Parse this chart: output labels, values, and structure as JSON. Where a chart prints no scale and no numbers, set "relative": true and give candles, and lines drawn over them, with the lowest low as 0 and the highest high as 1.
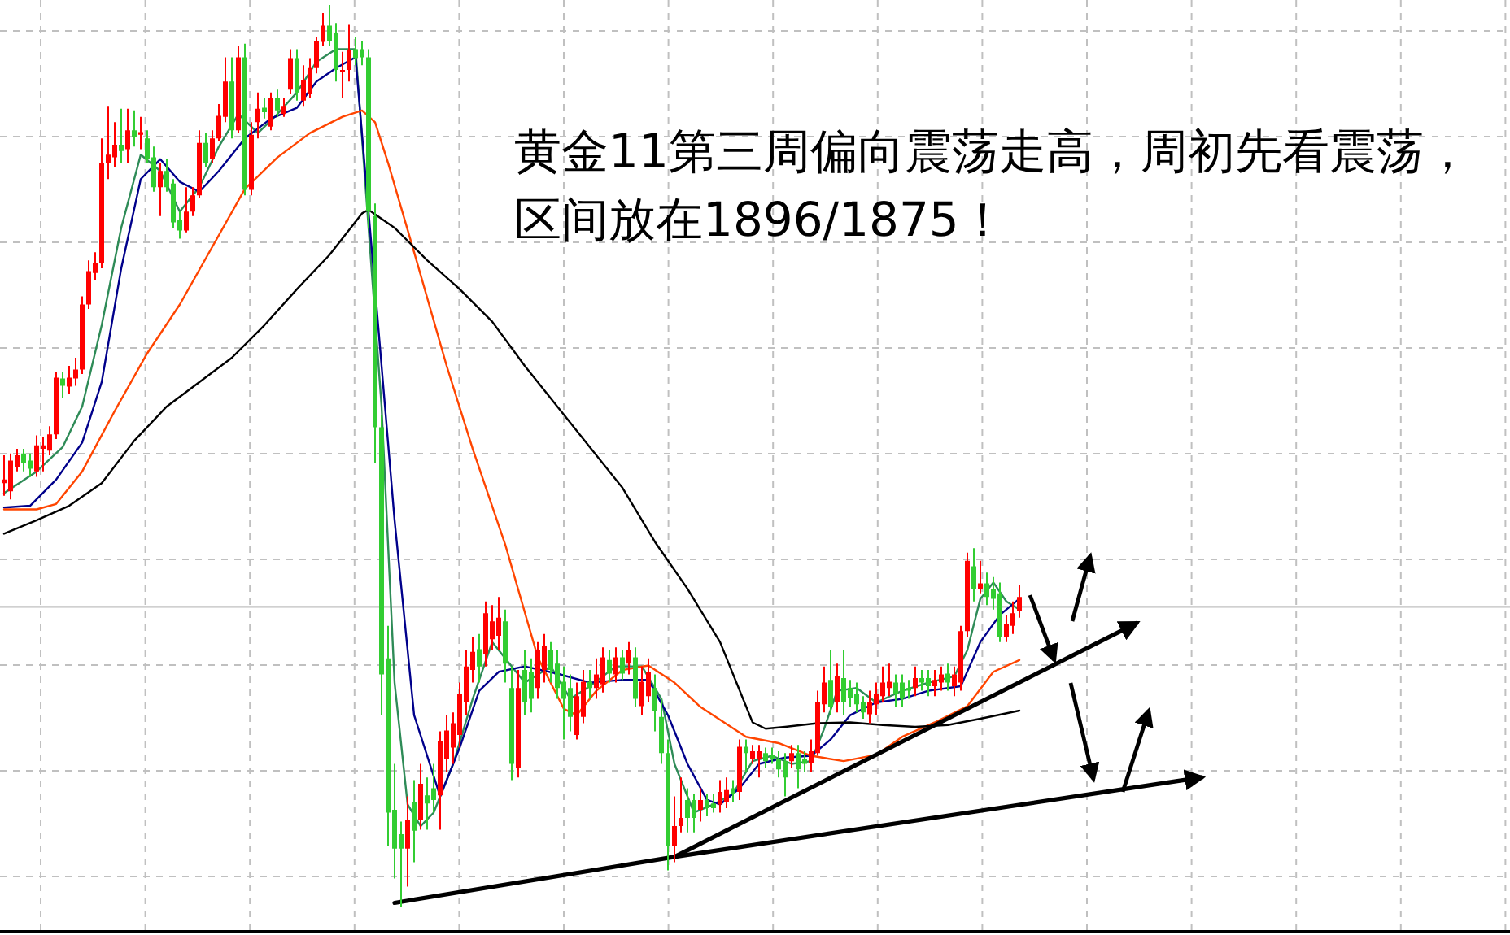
{
  "chart_data": {
    "type": "candlestick",
    "relative": true,
    "grid": true,
    "annotations": [
      "黄金11第三周偏向震荡走高，周初先看震荡，区间放在1896/1875！"
    ],
    "colors": [
      "#ff0000",
      "#ff0000",
      "#ff0000",
      "#32cd32",
      "#32cd32",
      "#ff0000",
      "#ff0000",
      "#ff0000",
      "#ff0000",
      "#32cd32",
      "#ff0000",
      "#ff0000",
      "#ff0000",
      "#ff0000",
      "#ff0000",
      "#ff0000",
      "#ff0000",
      "#ff0000",
      "#32cd32",
      "#ff0000",
      "#32cd32",
      "#ff0000",
      "#32cd32",
      "#32cd32",
      "#ff0000",
      "#32cd32",
      "#32cd32",
      "#32cd32",
      "#ff0000",
      "#ff0000",
      "#ff0000",
      "#32cd32",
      "#ff0000",
      "#ff0000",
      "#ff0000",
      "#32cd32",
      "#ff0000",
      "#32cd32",
      "#ff0000",
      "#ff0000",
      "#32cd32",
      "#ff0000",
      "#32cd32",
      "#ff0000",
      "#ff0000",
      "#32cd32",
      "#ff0000",
      "#ff0000",
      "#ff0000",
      "#ff0000",
      "#32cd32",
      "#32cd32",
      "#ff0000",
      "#ff0000",
      "#32cd32",
      "#32cd32",
      "#32cd32",
      "#32cd32",
      "#32cd32",
      "#32cd32",
      "#32cd32",
      "#32cd32",
      "#ff0000",
      "#32cd32",
      "#ff0000",
      "#32cd32",
      "#32cd32",
      "#ff0000",
      "#ff0000",
      "#ff0000",
      "#ff0000",
      "#ff0000",
      "#ff0000",
      "#32cd32",
      "#ff0000",
      "#ff0000",
      "#ff0000",
      "#32cd32",
      "#32cd32",
      "#ff0000",
      "#32cd32",
      "#32cd32",
      "#ff0000",
      "#ff0000",
      "#32cd32",
      "#32cd32",
      "#32cd32",
      "#32cd32",
      "#ff0000",
      "#ff0000",
      "#32cd32",
      "#ff0000",
      "#ff0000",
      "#32cd32",
      "#ff0000",
      "#32cd32",
      "#ff0000",
      "#32cd32",
      "#ff0000",
      "#ff0000",
      "#32cd32",
      "#32cd32",
      "#32cd32",
      "#ff0000",
      "#ff0000",
      "#32cd32",
      "#32cd32",
      "#ff0000",
      "#32cd32",
      "#32cd32",
      "#ff0000",
      "#ff0000",
      "#32cd32",
      "#ff0000",
      "#32cd32",
      "#ff0000",
      "#ff0000",
      "#32cd32",
      "#32cd32",
      "#32cd32",
      "#32cd32",
      "#ff0000",
      "#32cd32",
      "#32cd32",
      "#ff0000",
      "#ff0000",
      "#ff0000",
      "#32cd32",
      "#ff0000",
      "#32cd32",
      "#32cd32",
      "#32cd32",
      "#32cd32",
      "#ff0000",
      "#ff0000",
      "#ff0000",
      "#ff0000",
      "#32cd32",
      "#32cd32",
      "#32cd32",
      "#ff0000",
      "#32cd32",
      "#32cd32",
      "#ff0000",
      "#ff0000",
      "#32cd32",
      "#ff0000",
      "#ff0000",
      "#ff0000",
      "#32cd32",
      "#ff0000",
      "#32cd32",
      "#32cd32",
      "#32cd32",
      "#ff0000",
      "#ff0000",
      "#ff0000",
      null,
      null,
      null,
      null,
      null,
      null,
      null,
      null,
      null,
      null,
      null,
      null,
      null,
      null,
      null,
      null,
      null,
      null,
      null,
      null,
      null,
      null,
      null,
      null,
      null,
      null,
      null,
      null
    ],
    "ref_lines": [
      {
        "axis": "y",
        "value": 0.333,
        "color": "#c0c0c0"
      }
    ],
    "categories": [
      null,
      null,
      null,
      null,
      null,
      null,
      null,
      null,
      null,
      null,
      null,
      null,
      null,
      null,
      null,
      null,
      null,
      null,
      null,
      null,
      null,
      null,
      null,
      null,
      null,
      null,
      null,
      null,
      null,
      null,
      null,
      null,
      null,
      null,
      null,
      null,
      null,
      null,
      null,
      null,
      null,
      null,
      null,
      null,
      null,
      null,
      null,
      null,
      null,
      null,
      null,
      null,
      null,
      null,
      null,
      null,
      null,
      null,
      null,
      null,
      null,
      null,
      null,
      null,
      null,
      null,
      null,
      null,
      null,
      null,
      null,
      null,
      null,
      null,
      null,
      null,
      null,
      null,
      null,
      null,
      null,
      null,
      null,
      null,
      null,
      null,
      null,
      null,
      null,
      null,
      null,
      null,
      null,
      null,
      null,
      null,
      null,
      null,
      null,
      null,
      null,
      null,
      null,
      null,
      null,
      null,
      null,
      null,
      null,
      null,
      null,
      null,
      null,
      null,
      null,
      null,
      null,
      null,
      null,
      null,
      null,
      null,
      null,
      null,
      null,
      null,
      null,
      null,
      null,
      null,
      null,
      null,
      null,
      null,
      null,
      null,
      null,
      null,
      null,
      null,
      null,
      null,
      null,
      null,
      null,
      null,
      null,
      null,
      null,
      null,
      null,
      null,
      null,
      null,
      null,
      null,
      null,
      null,
      null,
      null,
      null,
      null,
      null,
      null,
      null,
      null,
      null,
      null,
      null,
      null,
      null,
      null,
      null,
      null,
      null,
      null,
      null,
      null,
      null,
      null,
      null,
      null,
      null,
      null,
      null
    ],
    "ohlc": [
      [
        0.47,
        0.501,
        0.456,
        0.474
      ],
      [
        0.461,
        0.503,
        0.452,
        0.495
      ],
      [
        0.488,
        0.508,
        0.483,
        0.501
      ],
      [
        0.503,
        0.508,
        0.483,
        0.492
      ],
      [
        0.495,
        0.503,
        0.477,
        0.486
      ],
      [
        0.483,
        0.523,
        0.477,
        0.512
      ],
      [
        0.508,
        0.521,
        0.483,
        0.512
      ],
      [
        0.506,
        0.533,
        0.501,
        0.524
      ],
      [
        0.524,
        0.593,
        0.519,
        0.587
      ],
      [
        0.586,
        0.593,
        0.564,
        0.578
      ],
      [
        0.577,
        0.6,
        0.569,
        0.587
      ],
      [
        0.586,
        0.609,
        0.578,
        0.596
      ],
      [
        0.596,
        0.677,
        0.591,
        0.668
      ],
      [
        0.668,
        0.717,
        0.663,
        0.705
      ],
      [
        0.703,
        0.726,
        0.695,
        0.714
      ],
      [
        0.714,
        0.852,
        0.708,
        0.825
      ],
      [
        0.825,
        0.888,
        0.807,
        0.834
      ],
      [
        0.831,
        0.87,
        0.82,
        0.845
      ],
      [
        0.845,
        0.885,
        0.825,
        0.838
      ],
      [
        0.84,
        0.885,
        0.825,
        0.861
      ],
      [
        0.861,
        0.883,
        0.843,
        0.854
      ],
      [
        0.856,
        0.876,
        0.84,
        0.859
      ],
      [
        0.852,
        0.861,
        0.825,
        0.829
      ],
      [
        0.831,
        0.843,
        0.793,
        0.798
      ],
      [
        0.798,
        0.825,
        0.766,
        0.816
      ],
      [
        0.816,
        0.829,
        0.793,
        0.798
      ],
      [
        0.802,
        0.807,
        0.753,
        0.759
      ],
      [
        0.762,
        0.771,
        0.741,
        0.75
      ],
      [
        0.75,
        0.798,
        0.748,
        0.771
      ],
      [
        0.771,
        0.798,
        0.766,
        0.789
      ],
      [
        0.789,
        0.861,
        0.786,
        0.847
      ],
      [
        0.847,
        0.858,
        0.82,
        0.825
      ],
      [
        0.829,
        0.861,
        0.825,
        0.852
      ],
      [
        0.852,
        0.89,
        0.849,
        0.877
      ],
      [
        0.876,
        0.942,
        0.87,
        0.915
      ],
      [
        0.915,
        0.942,
        0.852,
        0.861
      ],
      [
        0.861,
        0.955,
        0.858,
        0.942
      ],
      [
        0.942,
        0.957,
        0.789,
        0.795
      ],
      [
        0.795,
        0.87,
        0.789,
        0.856
      ],
      [
        0.87,
        0.903,
        0.852,
        0.885
      ],
      [
        0.886,
        0.897,
        0.874,
        0.881
      ],
      [
        0.865,
        0.903,
        0.861,
        0.897
      ],
      [
        0.897,
        0.906,
        0.876,
        0.883
      ],
      [
        0.879,
        0.897,
        0.876,
        0.888
      ],
      [
        0.906,
        0.951,
        0.901,
        0.941
      ],
      [
        0.941,
        0.951,
        0.894,
        0.903
      ],
      [
        0.894,
        0.933,
        0.888,
        0.917
      ],
      [
        0.901,
        0.941,
        0.897,
        0.93
      ],
      [
        0.93,
        0.964,
        0.924,
        0.96
      ],
      [
        0.959,
        0.991,
        0.955,
        0.977
      ],
      [
        0.977,
        1.0,
        0.955,
        0.96
      ],
      [
        0.969,
        0.98,
        0.915,
        0.928
      ],
      [
        0.926,
        0.948,
        0.897,
        0.928
      ],
      [
        0.928,
        0.978,
        0.915,
        0.95
      ],
      [
        0.951,
        0.964,
        0.933,
        0.941
      ],
      [
        0.951,
        0.96,
        0.933,
        0.942
      ],
      [
        0.942,
        0.951,
        0.753,
        0.771
      ],
      [
        0.766,
        0.78,
        0.492,
        0.532
      ],
      [
        0.532,
        0.546,
        0.213,
        0.258
      ],
      [
        0.276,
        0.312,
        0.068,
        0.105
      ],
      [
        0.108,
        0.159,
        0.032,
        0.065
      ],
      [
        0.081,
        0.095,
        0.0,
        0.065
      ],
      [
        0.065,
        0.123,
        0.023,
        0.097
      ],
      [
        0.117,
        0.141,
        0.05,
        0.085
      ],
      [
        0.097,
        0.159,
        0.086,
        0.137
      ],
      [
        0.124,
        0.144,
        0.086,
        0.115
      ],
      [
        0.132,
        0.159,
        0.105,
        0.119
      ],
      [
        0.124,
        0.195,
        0.086,
        0.184
      ],
      [
        0.164,
        0.213,
        0.15,
        0.196
      ],
      [
        0.177,
        0.216,
        0.159,
        0.204
      ],
      [
        0.191,
        0.249,
        0.177,
        0.236
      ],
      [
        0.227,
        0.285,
        0.213,
        0.267
      ],
      [
        0.263,
        0.299,
        0.249,
        0.283
      ],
      [
        0.286,
        0.303,
        0.249,
        0.267
      ],
      [
        0.281,
        0.339,
        0.267,
        0.326
      ],
      [
        0.297,
        0.335,
        0.285,
        0.317
      ],
      [
        0.301,
        0.344,
        0.285,
        0.321
      ],
      [
        0.317,
        0.33,
        0.249,
        0.27
      ],
      [
        0.243,
        0.267,
        0.141,
        0.159
      ],
      [
        0.155,
        0.263,
        0.144,
        0.243
      ],
      [
        0.263,
        0.285,
        0.213,
        0.227
      ],
      [
        0.261,
        0.276,
        0.216,
        0.231
      ],
      [
        0.243,
        0.294,
        0.231,
        0.285
      ],
      [
        0.263,
        0.303,
        0.249,
        0.29
      ],
      [
        0.285,
        0.294,
        0.249,
        0.263
      ],
      [
        0.27,
        0.285,
        0.231,
        0.243
      ],
      [
        0.25,
        0.267,
        0.186,
        0.231
      ],
      [
        0.243,
        0.258,
        0.195,
        0.211
      ],
      [
        0.191,
        0.249,
        0.186,
        0.234
      ],
      [
        0.211,
        0.263,
        0.204,
        0.25
      ],
      [
        0.25,
        0.263,
        0.231,
        0.243
      ],
      [
        0.243,
        0.276,
        0.231,
        0.258
      ],
      [
        0.247,
        0.288,
        0.238,
        0.277
      ],
      [
        0.274,
        0.285,
        0.249,
        0.259
      ],
      [
        0.258,
        0.288,
        0.249,
        0.277
      ],
      [
        0.277,
        0.285,
        0.252,
        0.259
      ],
      [
        0.27,
        0.294,
        0.258,
        0.285
      ],
      [
        0.277,
        0.288,
        0.222,
        0.231
      ],
      [
        0.223,
        0.267,
        0.213,
        0.25
      ],
      [
        0.234,
        0.276,
        0.227,
        0.261
      ],
      [
        0.243,
        0.258,
        0.195,
        0.218
      ],
      [
        0.211,
        0.231,
        0.159,
        0.171
      ],
      [
        0.171,
        0.186,
        0.041,
        0.068
      ],
      [
        0.068,
        0.123,
        0.05,
        0.09
      ],
      [
        0.09,
        0.144,
        0.083,
        0.099
      ],
      [
        0.119,
        0.132,
        0.083,
        0.099
      ],
      [
        0.119,
        0.126,
        0.083,
        0.099
      ],
      [
        0.108,
        0.132,
        0.095,
        0.119
      ],
      [
        0.119,
        0.126,
        0.101,
        0.11
      ],
      [
        0.115,
        0.126,
        0.105,
        0.11
      ],
      [
        0.114,
        0.141,
        0.105,
        0.128
      ],
      [
        0.117,
        0.144,
        0.11,
        0.13
      ],
      [
        0.132,
        0.141,
        0.117,
        0.126
      ],
      [
        0.128,
        0.186,
        0.119,
        0.178
      ],
      [
        0.178,
        0.186,
        0.15,
        0.171
      ],
      [
        0.164,
        0.18,
        0.159,
        0.173
      ],
      [
        0.164,
        0.18,
        0.144,
        0.173
      ],
      [
        0.171,
        0.177,
        0.155,
        0.162
      ],
      [
        0.169,
        0.177,
        0.159,
        0.164
      ],
      [
        0.164,
        0.173,
        0.144,
        0.153
      ],
      [
        0.162,
        0.171,
        0.123,
        0.144
      ],
      [
        0.162,
        0.18,
        0.155,
        0.171
      ],
      [
        0.171,
        0.18,
        0.132,
        0.153
      ],
      [
        0.164,
        0.173,
        0.15,
        0.159
      ],
      [
        0.16,
        0.186,
        0.15,
        0.173
      ],
      [
        0.171,
        0.24,
        0.168,
        0.227
      ],
      [
        0.225,
        0.267,
        0.216,
        0.249
      ],
      [
        0.252,
        0.285,
        0.213,
        0.222
      ],
      [
        0.227,
        0.27,
        0.216,
        0.256
      ],
      [
        0.254,
        0.285,
        0.213,
        0.227
      ],
      [
        0.243,
        0.252,
        0.222,
        0.232
      ],
      [
        0.236,
        0.249,
        0.216,
        0.225
      ],
      [
        0.227,
        0.234,
        0.209,
        0.216
      ],
      [
        0.214,
        0.24,
        0.204,
        0.227
      ],
      [
        0.225,
        0.249,
        0.213,
        0.236
      ],
      [
        0.234,
        0.267,
        0.227,
        0.249
      ],
      [
        0.243,
        0.27,
        0.234,
        0.25
      ],
      [
        0.249,
        0.258,
        0.222,
        0.236
      ],
      [
        0.249,
        0.258,
        0.222,
        0.231
      ],
      [
        0.243,
        0.252,
        0.231,
        0.24
      ],
      [
        0.243,
        0.267,
        0.234,
        0.254
      ],
      [
        0.254,
        0.263,
        0.24,
        0.249
      ],
      [
        0.254,
        0.263,
        0.234,
        0.245
      ],
      [
        0.245,
        0.263,
        0.234,
        0.252
      ],
      [
        0.249,
        0.267,
        0.24,
        0.258
      ],
      [
        0.259,
        0.27,
        0.24,
        0.249
      ],
      [
        0.245,
        0.267,
        0.234,
        0.258
      ],
      [
        0.249,
        0.312,
        0.24,
        0.306
      ],
      [
        0.306,
        0.393,
        0.299,
        0.384
      ],
      [
        0.378,
        0.398,
        0.339,
        0.353
      ],
      [
        0.353,
        0.384,
        0.348,
        0.359
      ],
      [
        0.359,
        0.371,
        0.335,
        0.344
      ],
      [
        0.353,
        0.366,
        0.33,
        0.342
      ],
      [
        0.348,
        0.36,
        0.294,
        0.299
      ],
      [
        0.299,
        0.324,
        0.294,
        0.314
      ],
      [
        0.312,
        0.339,
        0.303,
        0.326
      ],
      [
        0.328,
        0.357,
        0.321,
        0.344
      ],
      null,
      null,
      null,
      null,
      null,
      null,
      null,
      null,
      null,
      null,
      null,
      null,
      null,
      null,
      null,
      null,
      null,
      null,
      null,
      null,
      null,
      null,
      null,
      null,
      null,
      null,
      null,
      null
    ],
    "series": [
      {
        "type": "line",
        "color": "#2e8b57",
        "values": [
          0.459,
          null,
          null,
          null,
          null,
          0.483,
          null,
          null,
          null,
          0.51,
          null,
          null,
          0.555,
          null,
          null,
          0.645,
          null,
          null,
          0.753,
          null,
          null,
          0.834,
          null,
          null,
          0.816,
          null,
          null,
          0.771,
          null,
          null,
          0.798,
          null,
          null,
          0.843,
          null,
          null,
          0.879,
          null,
          null,
          0.858,
          null,
          null,
          0.879,
          null,
          null,
          0.903,
          null,
          null,
          0.937,
          null,
          null,
          0.951,
          null,
          null,
          0.951,
          null,
          null,
          null,
          0.555,
          null,
          0.249,
          null,
          0.114,
          null,
          0.09,
          null,
          0.105,
          null,
          null,
          0.159,
          null,
          null,
          0.231,
          null,
          null,
          0.294,
          null,
          0.276,
          null,
          null,
          0.249,
          null,
          null,
          null,
          0.267,
          null,
          null,
          0.231,
          null,
          null,
          0.245,
          null,
          null,
          null,
          0.267,
          null,
          null,
          null,
          0.267,
          null,
          null,
          0.231,
          null,
          0.159,
          null,
          null,
          0.105,
          null,
          null,
          0.114,
          null,
          null,
          0.126,
          null,
          null,
          0.162,
          null,
          null,
          0.168,
          null,
          null,
          0.159,
          null,
          null,
          0.162,
          null,
          0.198,
          null,
          0.24,
          null,
          null,
          0.243,
          null,
          null,
          0.227,
          null,
          null,
          null,
          0.24,
          null,
          null,
          null,
          0.249,
          null,
          null,
          null,
          0.256,
          null,
          0.285,
          null,
          0.342,
          null,
          0.36,
          null,
          0.339,
          null,
          0.33,
          null,
          null,
          null,
          null,
          null,
          null,
          null,
          null,
          null,
          null,
          null,
          null,
          null,
          null,
          null,
          null,
          null,
          null,
          null,
          null,
          null,
          null,
          null,
          null,
          null,
          null,
          null,
          null
        ]
      },
      {
        "type": "line",
        "color": "#00008b",
        "values": [
          0.443,
          null,
          null,
          null,
          0.445,
          null,
          null,
          null,
          0.474,
          null,
          null,
          null,
          0.515,
          null,
          null,
          0.582,
          null,
          null,
          0.708,
          null,
          null,
          0.807,
          null,
          null,
          0.829,
          null,
          null,
          0.804,
          null,
          null,
          0.793,
          null,
          null,
          0.816,
          null,
          null,
          null,
          0.852,
          null,
          null,
          null,
          0.874,
          null,
          null,
          null,
          0.886,
          null,
          null,
          0.915,
          null,
          null,
          0.93,
          null,
          null,
          0.942,
          null,
          null,
          null,
          null,
          null,
          0.429,
          null,
          null,
          0.213,
          null,
          null,
          null,
          0.123,
          null,
          null,
          0.177,
          null,
          null,
          0.24,
          null,
          null,
          0.261,
          null,
          null,
          null,
          0.267,
          null,
          null,
          null,
          null,
          0.259,
          null,
          null,
          null,
          null,
          0.249,
          null,
          null,
          null,
          null,
          0.252,
          null,
          null,
          null,
          0.252,
          null,
          null,
          0.213,
          null,
          null,
          0.159,
          null,
          null,
          0.119,
          null,
          0.114,
          null,
          null,
          0.132,
          null,
          null,
          0.159,
          null,
          null,
          null,
          0.166,
          null,
          null,
          null,
          0.168,
          null,
          null,
          0.186,
          null,
          null,
          0.213,
          null,
          null,
          null,
          0.227,
          null,
          null,
          null,
          0.231,
          null,
          null,
          null,
          0.24,
          null,
          null,
          null,
          null,
          0.245,
          null,
          null,
          0.294,
          null,
          null,
          0.324,
          null,
          null,
          0.342,
          null,
          null,
          null,
          null,
          null,
          null,
          null,
          null,
          null,
          null,
          null,
          null,
          null,
          null,
          null,
          null,
          null,
          null,
          null,
          null,
          null,
          null,
          null,
          null,
          null,
          null,
          null,
          null
        ]
      },
      {
        "type": "line",
        "color": "#ff4500",
        "values": [
          0.441,
          null,
          null,
          null,
          null,
          0.441,
          null,
          null,
          0.447,
          null,
          null,
          null,
          0.483,
          null,
          null,
          null,
          null,
          0.55,
          null,
          null,
          null,
          null,
          0.614,
          null,
          null,
          null,
          null,
          0.668,
          null,
          null,
          null,
          null,
          0.732,
          null,
          null,
          null,
          null,
          0.796,
          null,
          null,
          null,
          null,
          0.831,
          null,
          null,
          null,
          null,
          0.858,
          null,
          null,
          null,
          null,
          0.876,
          null,
          null,
          0.883,
          null,
          0.87,
          null,
          0.825,
          null,
          null,
          null,
          0.726,
          null,
          null,
          null,
          null,
          0.6,
          null,
          null,
          null,
          0.508,
          null,
          null,
          null,
          null,
          0.402,
          null,
          null,
          null,
          null,
          0.277,
          null,
          null,
          null,
          0.22,
          null,
          0.213,
          null,
          null,
          0.24,
          null,
          null,
          null,
          0.263,
          null,
          null,
          null,
          0.268,
          null,
          null,
          null,
          0.249,
          null,
          null,
          null,
          0.222,
          null,
          null,
          null,
          null,
          null,
          null,
          0.189,
          null,
          null,
          null,
          null,
          0.182,
          null,
          null,
          null,
          null,
          0.168,
          null,
          null,
          null,
          null,
          0.162,
          null,
          null,
          null,
          null,
          0.169,
          null,
          null,
          null,
          0.189,
          null,
          null,
          null,
          null,
          0.205,
          null,
          null,
          null,
          null,
          0.223,
          null,
          null,
          null,
          0.261,
          null,
          null,
          null,
          0.274,
          null,
          null,
          null,
          null,
          null,
          null,
          null,
          null,
          null,
          null,
          null,
          null,
          null,
          null,
          null,
          null,
          null,
          null,
          null,
          null,
          null,
          null,
          null,
          null,
          null,
          null,
          null,
          null
        ]
      },
      {
        "type": "line",
        "color": "#000000",
        "values": [
          0.414,
          null,
          null,
          null,
          null,
          0.429,
          null,
          null,
          null,
          null,
          0.445,
          null,
          null,
          null,
          null,
          0.47,
          null,
          null,
          null,
          null,
          0.517,
          null,
          null,
          null,
          null,
          0.555,
          null,
          null,
          null,
          null,
          0.582,
          null,
          null,
          null,
          null,
          0.609,
          null,
          null,
          null,
          null,
          0.645,
          null,
          null,
          null,
          null,
          0.685,
          null,
          null,
          null,
          null,
          0.723,
          null,
          null,
          null,
          null,
          0.769,
          0.773,
          null,
          null,
          null,
          0.753,
          null,
          null,
          null,
          null,
          0.717,
          null,
          null,
          null,
          null,
          0.685,
          null,
          null,
          null,
          null,
          0.649,
          null,
          null,
          null,
          null,
          0.6,
          null,
          null,
          null,
          null,
          0.555,
          null,
          null,
          null,
          null,
          0.51,
          null,
          null,
          null,
          null,
          0.465,
          null,
          null,
          null,
          null,
          0.405,
          null,
          null,
          null,
          null,
          0.353,
          null,
          null,
          null,
          null,
          0.294,
          null,
          null,
          null,
          null,
          0.205,
          null,
          0.198,
          null,
          null,
          0.2,
          null,
          null,
          null,
          null,
          0.204,
          null,
          null,
          null,
          null,
          0.205,
          null,
          null,
          null,
          null,
          0.202,
          null,
          null,
          null,
          null,
          0.2,
          null,
          null,
          null,
          null,
          0.202,
          null,
          null,
          null,
          null,
          0.209,
          null,
          null,
          null,
          null,
          null,
          0.218,
          null,
          null,
          null,
          null,
          null,
          null,
          null,
          null,
          null,
          null,
          null,
          null,
          null,
          null,
          null,
          null,
          null,
          null,
          null,
          null,
          null,
          null,
          null,
          null,
          null,
          null,
          null,
          null
        ]
      },
      {
        "type": "line",
        "color": "#000000",
        "values": [
          null,
          null,
          null,
          null,
          null,
          null,
          null,
          null,
          null,
          null,
          null,
          null,
          null,
          null,
          null,
          null,
          null,
          null,
          null,
          null,
          null,
          null,
          null,
          null,
          null,
          null,
          null,
          null,
          null,
          null,
          null,
          null,
          null,
          null,
          null,
          null,
          null,
          null,
          null,
          null,
          null,
          null,
          null,
          null,
          null,
          null,
          null,
          null,
          null,
          null,
          null,
          null,
          null,
          null,
          null,
          null,
          null,
          null,
          null,
          null,
          0.005,
          null,
          null,
          null,
          null,
          null,
          null,
          null,
          null,
          null,
          null,
          null,
          null,
          null,
          null,
          null,
          null,
          null,
          null,
          null,
          null,
          null,
          null,
          null,
          null,
          null,
          null,
          null,
          null,
          null,
          null,
          null,
          null,
          null,
          null,
          null,
          null,
          null,
          null,
          null,
          null,
          null,
          null,
          0.056,
          null,
          null,
          null,
          null,
          null,
          null,
          null,
          null,
          null,
          null,
          null,
          null,
          null,
          null,
          null,
          null,
          null,
          null,
          null,
          null,
          null,
          null,
          null,
          null,
          null,
          null,
          null,
          null,
          null,
          null,
          null,
          null,
          null,
          null,
          null,
          null,
          null,
          null,
          null,
          null,
          null,
          null,
          null,
          null,
          null,
          null,
          null,
          null,
          null,
          null,
          null,
          null,
          null,
          null,
          null,
          null,
          null,
          null,
          null,
          null,
          null,
          null,
          null,
          null,
          null,
          null,
          null,
          null,
          null,
          null,
          null,
          null,
          null,
          null,
          null,
          null,
          null,
          null,
          null,
          null,
          0.144
        ]
      },
      {
        "type": "line",
        "color": "#000000",
        "values": [
          null,
          null,
          null,
          null,
          null,
          null,
          null,
          null,
          null,
          null,
          null,
          null,
          null,
          null,
          null,
          null,
          null,
          null,
          null,
          null,
          null,
          null,
          null,
          null,
          null,
          null,
          null,
          null,
          null,
          null,
          null,
          null,
          null,
          null,
          null,
          null,
          null,
          null,
          null,
          null,
          null,
          null,
          null,
          null,
          null,
          null,
          null,
          null,
          null,
          null,
          null,
          null,
          null,
          null,
          null,
          null,
          null,
          null,
          null,
          null,
          null,
          null,
          null,
          null,
          null,
          null,
          null,
          null,
          null,
          null,
          null,
          null,
          null,
          null,
          null,
          null,
          null,
          null,
          null,
          null,
          null,
          null,
          null,
          null,
          null,
          null,
          null,
          null,
          null,
          null,
          null,
          null,
          null,
          null,
          null,
          null,
          null,
          null,
          null,
          null,
          null,
          null,
          null,
          0.056,
          null,
          null,
          null,
          null,
          null,
          null,
          null,
          null,
          null,
          null,
          null,
          null,
          null,
          null,
          null,
          null,
          null,
          null,
          null,
          null,
          null,
          null,
          null,
          null,
          null,
          null,
          null,
          null,
          null,
          null,
          null,
          null,
          null,
          null,
          null,
          null,
          null,
          null,
          null,
          null,
          null,
          null,
          null,
          null,
          null,
          null,
          null,
          null,
          null,
          null,
          null,
          null,
          null,
          null,
          null,
          null,
          null,
          null,
          null,
          null,
          null,
          null,
          null,
          null,
          null,
          null,
          null,
          null,
          null,
          null,
          0.315,
          null,
          null,
          null,
          null,
          null,
          null,
          null,
          null,
          null,
          null
        ]
      }
    ]
  }
}
